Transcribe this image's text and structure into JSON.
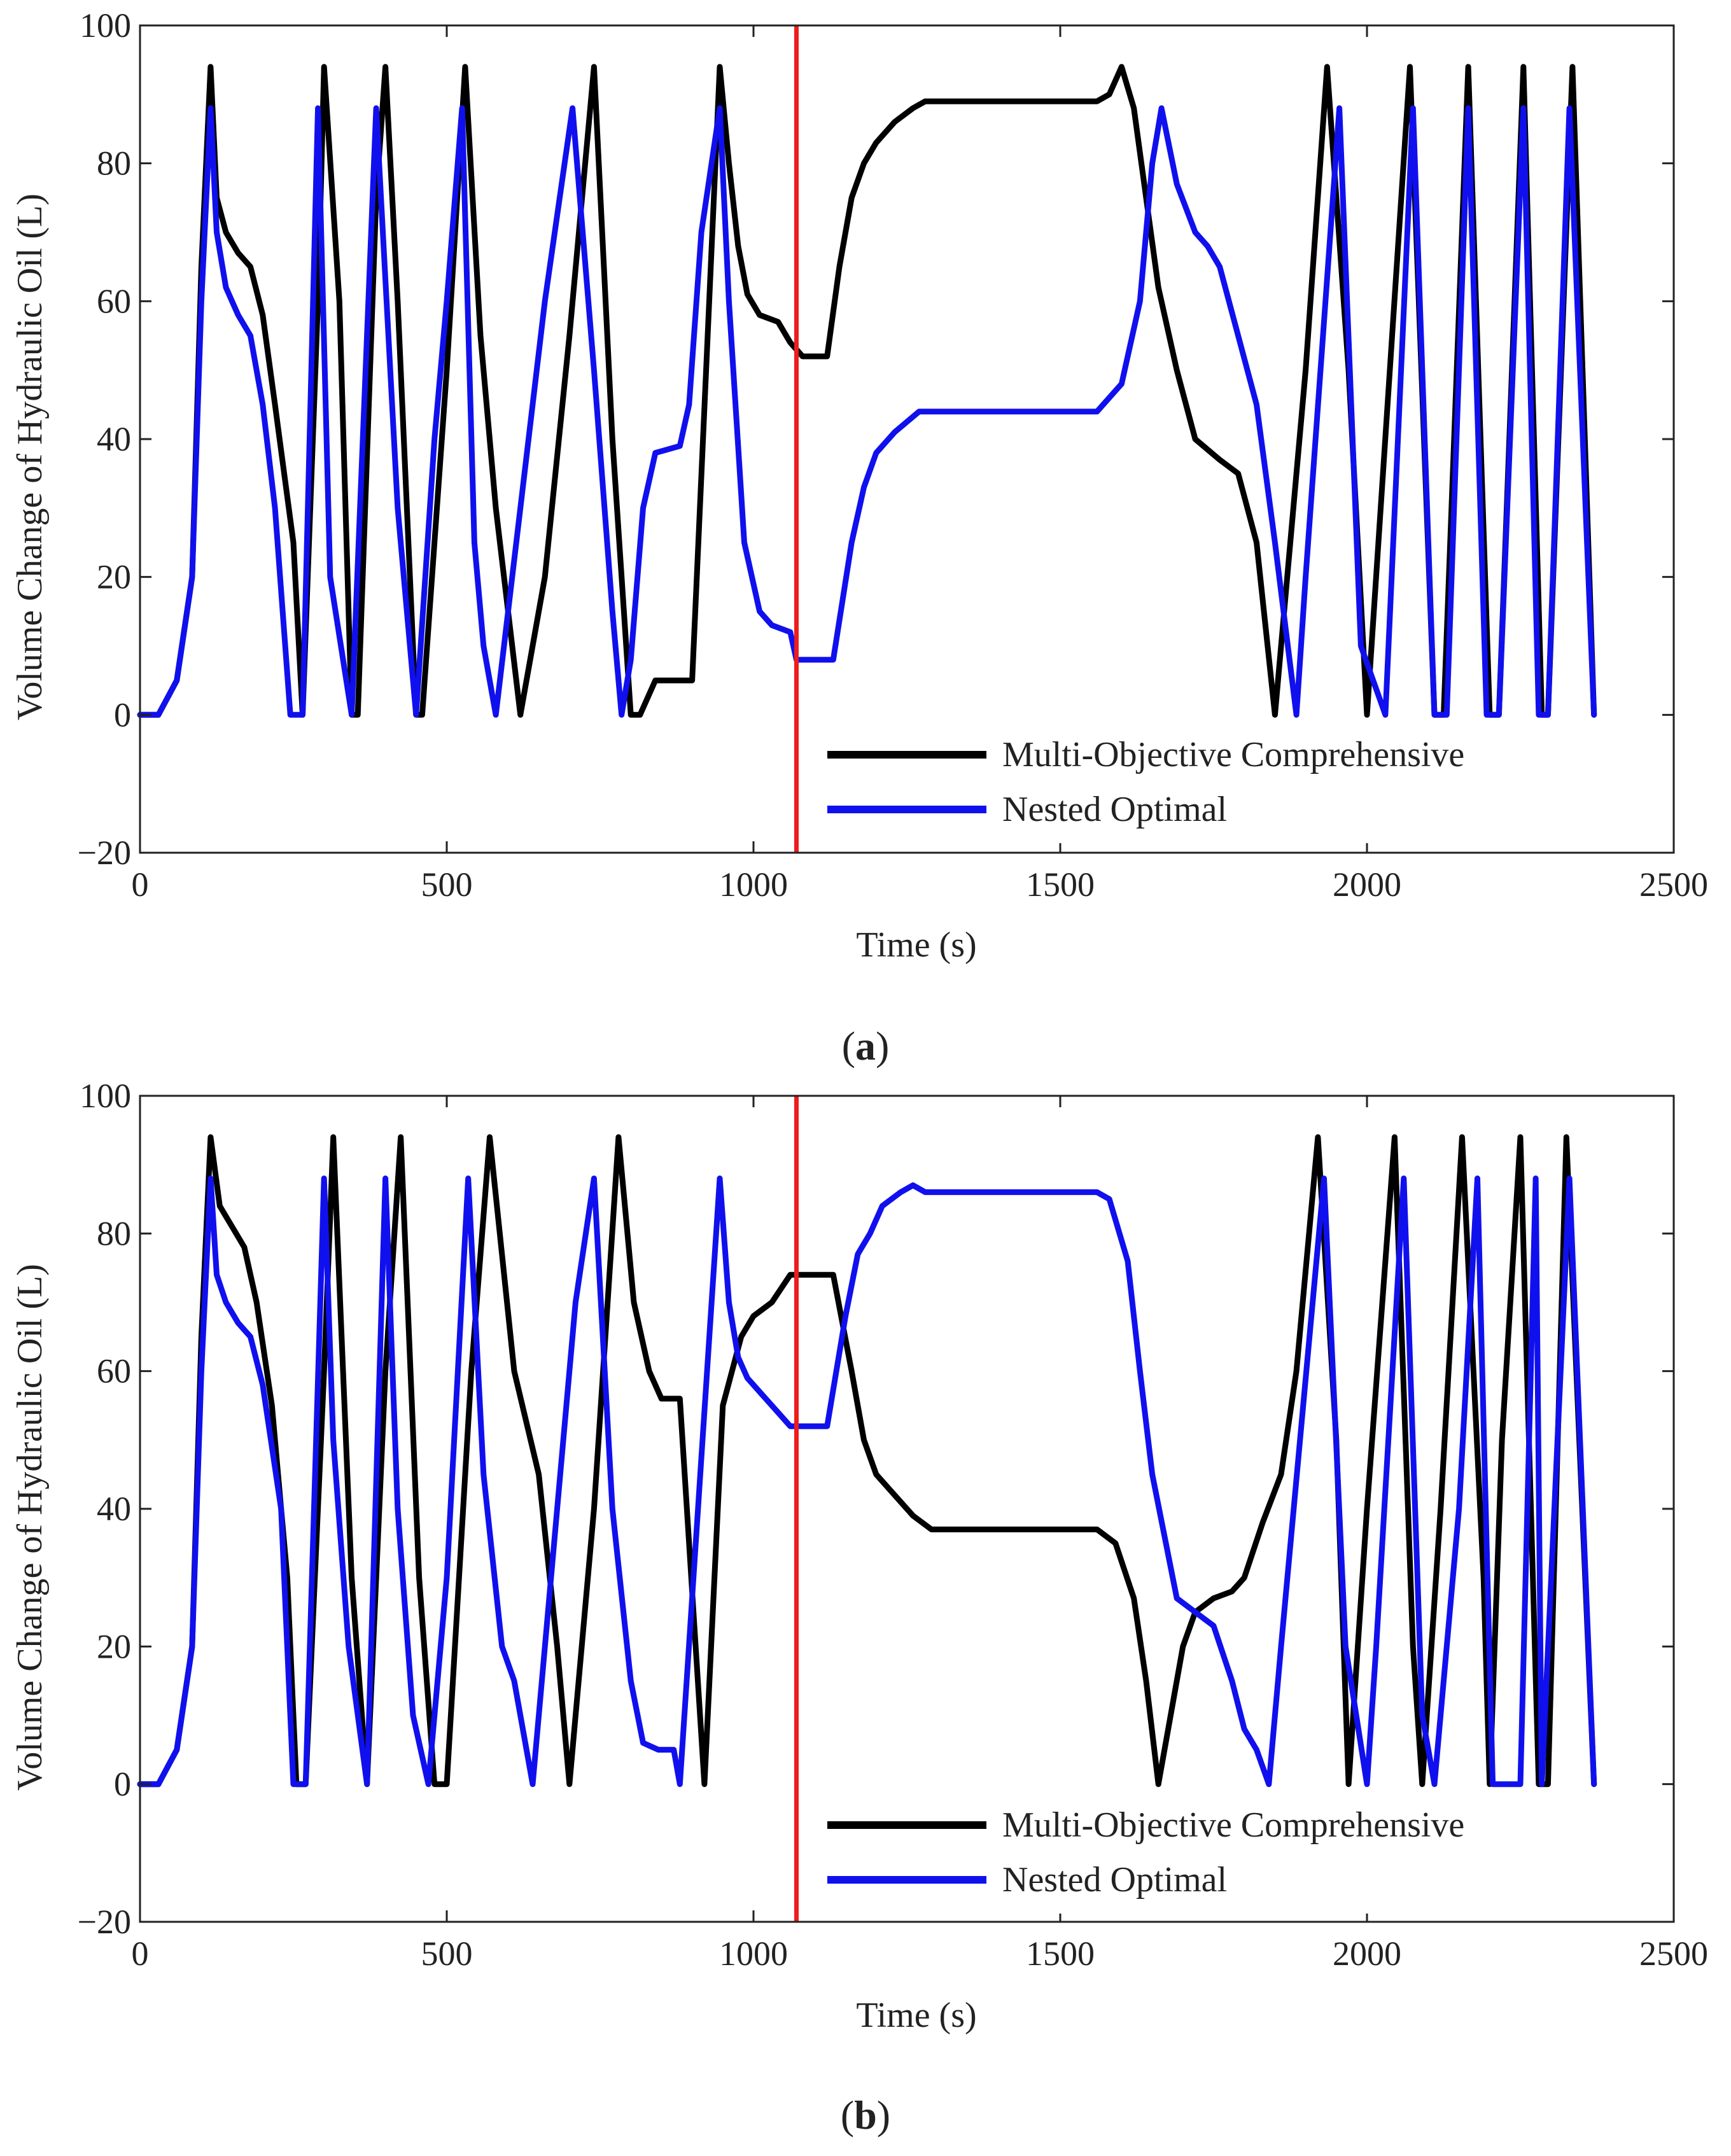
{
  "figure": {
    "panel_a_caption_letter": "a",
    "panel_b_caption_letter": "b"
  },
  "chart_data": [
    {
      "id": "a",
      "type": "line",
      "title": "",
      "caption": "(a)",
      "xlabel": "Time (s)",
      "ylabel": "Volume Change of Hydraulic Oil (L)",
      "xlim": [
        0,
        2500
      ],
      "ylim": [
        -20,
        100
      ],
      "xticks": [
        0,
        500,
        1000,
        1500,
        2000,
        2500
      ],
      "yticks": [
        -20,
        0,
        20,
        40,
        60,
        80,
        100
      ],
      "grid": false,
      "legend_position": "bottom-right",
      "vline": {
        "x": 1070,
        "color": "#ee1c1c"
      },
      "series": [
        {
          "name": "Multi-Objective Comprehensive",
          "color": "#000000",
          "x": [
            0,
            30,
            60,
            85,
            100,
            115,
            125,
            140,
            160,
            180,
            200,
            220,
            250,
            265,
            290,
            300,
            325,
            345,
            355,
            385,
            400,
            420,
            450,
            460,
            500,
            530,
            555,
            580,
            620,
            660,
            700,
            740,
            770,
            800,
            815,
            840,
            870,
            900,
            945,
            960,
            975,
            990,
            1010,
            1040,
            1060,
            1080,
            1120,
            1140,
            1160,
            1180,
            1200,
            1230,
            1260,
            1280,
            1300,
            1560,
            1580,
            1600,
            1620,
            1660,
            1690,
            1720,
            1760,
            1790,
            1820,
            1850,
            1900,
            1935,
            1970,
            2000,
            2070,
            2110,
            2125,
            2165,
            2200,
            2215,
            2255,
            2285,
            2295,
            2335,
            2370
          ],
          "values": [
            0,
            0,
            5,
            20,
            65,
            94,
            75,
            70,
            67,
            65,
            58,
            45,
            25,
            0,
            60,
            94,
            60,
            0,
            0,
            75,
            94,
            60,
            0,
            0,
            50,
            94,
            55,
            30,
            0,
            20,
            55,
            94,
            40,
            0,
            0,
            5,
            5,
            5,
            94,
            80,
            68,
            61,
            58,
            57,
            54,
            52,
            52,
            65,
            75,
            80,
            83,
            86,
            88,
            89,
            89,
            89,
            90,
            94,
            88,
            62,
            50,
            40,
            37,
            35,
            25,
            0,
            50,
            94,
            50,
            0,
            94,
            0,
            0,
            94,
            0,
            0,
            94,
            0,
            0,
            94,
            0
          ]
        },
        {
          "name": "Nested Optimal",
          "color": "#1010ee",
          "x": [
            0,
            30,
            60,
            85,
            100,
            115,
            125,
            140,
            160,
            180,
            200,
            220,
            245,
            265,
            290,
            310,
            345,
            385,
            420,
            450,
            480,
            500,
            525,
            545,
            560,
            580,
            620,
            660,
            705,
            740,
            770,
            785,
            800,
            820,
            840,
            880,
            895,
            915,
            945,
            960,
            985,
            1010,
            1030,
            1060,
            1070,
            1080,
            1130,
            1160,
            1180,
            1200,
            1230,
            1270,
            1290,
            1300,
            1560,
            1600,
            1630,
            1650,
            1665,
            1690,
            1720,
            1740,
            1760,
            1790,
            1820,
            1850,
            1885,
            1900,
            1955,
            1990,
            2030,
            2075,
            2110,
            2130,
            2165,
            2195,
            2215,
            2255,
            2280,
            2295,
            2330,
            2370
          ],
          "values": [
            0,
            0,
            5,
            20,
            60,
            88,
            70,
            62,
            58,
            55,
            45,
            30,
            0,
            0,
            88,
            20,
            0,
            88,
            30,
            0,
            40,
            60,
            88,
            25,
            10,
            0,
            30,
            60,
            88,
            50,
            15,
            0,
            8,
            30,
            38,
            39,
            45,
            70,
            88,
            60,
            25,
            15,
            13,
            12,
            8,
            8,
            8,
            25,
            33,
            38,
            41,
            44,
            44,
            44,
            44,
            48,
            60,
            80,
            88,
            77,
            70,
            68,
            65,
            55,
            45,
            25,
            0,
            20,
            88,
            10,
            0,
            88,
            0,
            0,
            88,
            0,
            0,
            88,
            0,
            0,
            88,
            0
          ]
        }
      ]
    },
    {
      "id": "b",
      "type": "line",
      "title": "",
      "caption": "(b)",
      "xlabel": "Time (s)",
      "ylabel": "Volume Change of Hydraulic Oil (L)",
      "xlim": [
        0,
        2500
      ],
      "ylim": [
        -20,
        100
      ],
      "xticks": [
        0,
        500,
        1000,
        1500,
        2000,
        2500
      ],
      "yticks": [
        -20,
        0,
        20,
        40,
        60,
        80,
        100
      ],
      "grid": false,
      "legend_position": "bottom-right",
      "vline": {
        "x": 1070,
        "color": "#ee1c1c"
      },
      "series": [
        {
          "name": "Multi-Objective Comprehensive",
          "color": "#000000",
          "x": [
            0,
            30,
            60,
            85,
            100,
            115,
            130,
            150,
            170,
            190,
            215,
            240,
            255,
            270,
            300,
            315,
            345,
            370,
            400,
            425,
            455,
            480,
            500,
            540,
            570,
            610,
            650,
            680,
            700,
            740,
            780,
            805,
            830,
            850,
            880,
            920,
            950,
            980,
            1000,
            1030,
            1060,
            1080,
            1130,
            1160,
            1180,
            1200,
            1230,
            1260,
            1290,
            1300,
            1560,
            1590,
            1620,
            1640,
            1660,
            1680,
            1700,
            1720,
            1750,
            1780,
            1800,
            1830,
            1860,
            1885,
            1920,
            1950,
            1970,
            2000,
            2045,
            2075,
            2090,
            2120,
            2155,
            2190,
            2200,
            2220,
            2250,
            2280,
            2295,
            2325,
            2370
          ],
          "values": [
            0,
            0,
            5,
            20,
            65,
            94,
            84,
            81,
            78,
            70,
            55,
            30,
            0,
            0,
            60,
            94,
            30,
            0,
            60,
            94,
            30,
            0,
            0,
            60,
            94,
            60,
            45,
            20,
            0,
            40,
            94,
            70,
            60,
            56,
            56,
            0,
            55,
            65,
            68,
            70,
            74,
            74,
            74,
            60,
            50,
            45,
            42,
            39,
            37,
            37,
            37,
            35,
            27,
            15,
            0,
            10,
            20,
            25,
            27,
            28,
            30,
            38,
            45,
            60,
            94,
            50,
            0,
            40,
            94,
            20,
            0,
            40,
            94,
            30,
            0,
            50,
            94,
            0,
            0,
            94,
            0
          ]
        },
        {
          "name": "Nested Optimal",
          "color": "#1010ee",
          "x": [
            0,
            30,
            60,
            85,
            100,
            115,
            125,
            140,
            160,
            180,
            200,
            230,
            250,
            270,
            300,
            315,
            340,
            370,
            400,
            420,
            445,
            470,
            500,
            535,
            560,
            590,
            610,
            640,
            680,
            710,
            740,
            770,
            800,
            820,
            845,
            870,
            880,
            945,
            960,
            975,
            990,
            1010,
            1040,
            1060,
            1070,
            1080,
            1120,
            1150,
            1170,
            1190,
            1210,
            1240,
            1260,
            1280,
            1560,
            1580,
            1610,
            1630,
            1650,
            1690,
            1720,
            1750,
            1780,
            1800,
            1820,
            1840,
            1860,
            1930,
            1965,
            2000,
            2015,
            2060,
            2090,
            2110,
            2150,
            2180,
            2205,
            2250,
            2275,
            2285,
            2330,
            2370
          ],
          "values": [
            0,
            0,
            5,
            20,
            60,
            88,
            74,
            70,
            67,
            65,
            58,
            40,
            0,
            0,
            88,
            50,
            20,
            0,
            88,
            40,
            10,
            0,
            30,
            88,
            45,
            20,
            15,
            0,
            40,
            70,
            88,
            40,
            15,
            6,
            5,
            5,
            0,
            88,
            70,
            62,
            59,
            57,
            54,
            52,
            52,
            52,
            52,
            68,
            77,
            80,
            84,
            86,
            87,
            86,
            86,
            85,
            76,
            60,
            45,
            27,
            25,
            23,
            15,
            8,
            5,
            0,
            20,
            88,
            20,
            0,
            20,
            88,
            10,
            0,
            40,
            88,
            0,
            0,
            88,
            0,
            88,
            0
          ]
        }
      ]
    }
  ]
}
